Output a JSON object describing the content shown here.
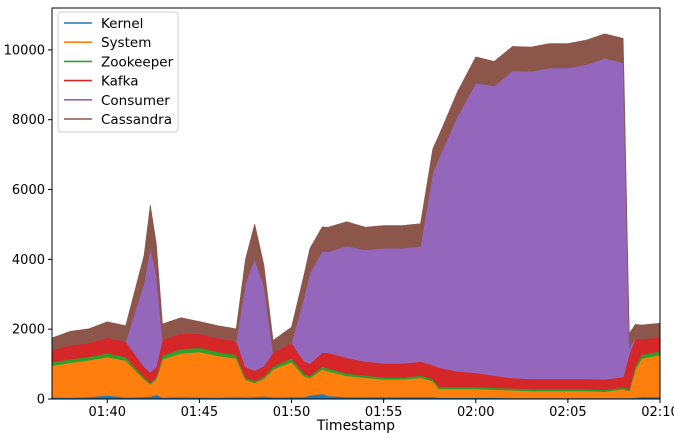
{
  "chart_data": {
    "type": "area",
    "stacked": true,
    "title": "",
    "xlabel": "Timestamp",
    "ylabel": "",
    "xlim": [
      "01:37",
      "02:10"
    ],
    "ylim": [
      0,
      11200
    ],
    "x_ticks": [
      "01:40",
      "01:45",
      "01:50",
      "01:55",
      "02:00",
      "02:05",
      "02:10"
    ],
    "y_ticks": [
      0,
      2000,
      4000,
      6000,
      8000,
      10000
    ],
    "grid": false,
    "legend_position": "top-left",
    "x": [
      "01:37:00",
      "01:38:00",
      "01:39:00",
      "01:40:00",
      "01:41:00",
      "01:42:00",
      "01:42:20",
      "01:42:40",
      "01:43:00",
      "01:44:00",
      "01:45:00",
      "01:46:00",
      "01:47:00",
      "01:47:30",
      "01:48:00",
      "01:48:30",
      "01:49:00",
      "01:50:00",
      "01:50:40",
      "01:51:00",
      "01:51:40",
      "01:52:00",
      "01:53:00",
      "01:54:00",
      "01:55:00",
      "01:56:00",
      "01:57:00",
      "01:57:40",
      "01:58:00",
      "01:59:00",
      "02:00:00",
      "02:01:00",
      "02:02:00",
      "02:03:00",
      "02:04:00",
      "02:05:00",
      "02:06:00",
      "02:07:00",
      "02:08:00",
      "02:08:20",
      "02:08:40",
      "02:09:00",
      "02:10:00"
    ],
    "series": [
      {
        "name": "Kernel",
        "color": "#1f77b4",
        "values": [
          50,
          40,
          60,
          100,
          50,
          60,
          70,
          120,
          40,
          60,
          50,
          40,
          60,
          50,
          60,
          80,
          50,
          60,
          60,
          100,
          150,
          90,
          60,
          60,
          60,
          60,
          60,
          60,
          40,
          40,
          40,
          40,
          30,
          30,
          30,
          30,
          30,
          30,
          30,
          30,
          40,
          60,
          60
        ]
      },
      {
        "name": "System",
        "color": "#ff7f0e",
        "values": [
          900,
          1000,
          1050,
          1100,
          1050,
          500,
          350,
          450,
          1100,
          1250,
          1300,
          1200,
          1100,
          500,
          400,
          500,
          800,
          1000,
          600,
          500,
          700,
          700,
          600,
          550,
          500,
          500,
          550,
          450,
          250,
          250,
          250,
          230,
          220,
          200,
          200,
          200,
          200,
          180,
          250,
          200,
          800,
          1100,
          1200
        ]
      },
      {
        "name": "Zookeeper",
        "color": "#2ca02c",
        "values": [
          100,
          100,
          100,
          110,
          100,
          60,
          40,
          60,
          110,
          120,
          120,
          110,
          100,
          60,
          50,
          60,
          80,
          100,
          70,
          60,
          80,
          80,
          70,
          60,
          60,
          60,
          60,
          60,
          60,
          50,
          60,
          50,
          50,
          50,
          50,
          50,
          50,
          50,
          50,
          50,
          100,
          110,
          110
        ]
      },
      {
        "name": "Kafka",
        "color": "#d62728",
        "values": [
          350,
          400,
          400,
          450,
          450,
          300,
          300,
          300,
          450,
          450,
          400,
          400,
          400,
          300,
          300,
          300,
          400,
          450,
          350,
          350,
          400,
          450,
          450,
          400,
          400,
          400,
          400,
          400,
          550,
          450,
          400,
          350,
          300,
          300,
          300,
          300,
          300,
          300,
          300,
          1000,
          800,
          450,
          400
        ]
      },
      {
        "name": "Consumer",
        "color": "#9467bd",
        "values": [
          0,
          0,
          0,
          0,
          0,
          2400,
          3600,
          2600,
          0,
          0,
          0,
          0,
          0,
          2400,
          3200,
          2300,
          0,
          0,
          1800,
          2600,
          2900,
          2900,
          3200,
          3200,
          3300,
          3300,
          3300,
          5500,
          6000,
          7300,
          8300,
          8300,
          8800,
          8800,
          8900,
          8900,
          9000,
          9200,
          9000,
          200,
          0,
          0,
          0
        ]
      },
      {
        "name": "Cassandra",
        "color": "#8c564b",
        "values": [
          350,
          400,
          400,
          450,
          450,
          800,
          1200,
          900,
          450,
          450,
          350,
          350,
          350,
          700,
          1000,
          600,
          350,
          450,
          650,
          700,
          700,
          700,
          700,
          650,
          650,
          650,
          650,
          700,
          650,
          700,
          750,
          700,
          700,
          700,
          700,
          700,
          700,
          700,
          700,
          400,
          400,
          400,
          400
        ]
      }
    ]
  }
}
